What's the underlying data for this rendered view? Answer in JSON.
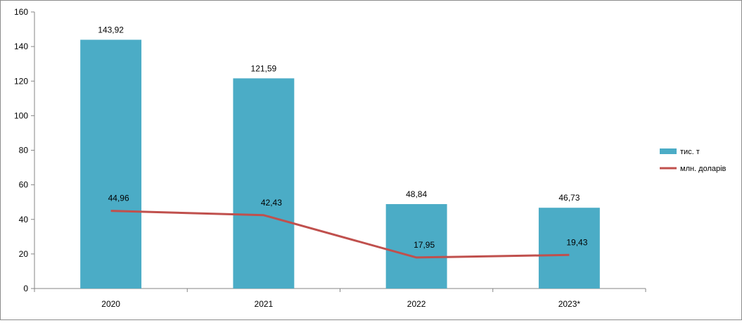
{
  "chart_data": {
    "type": "bar",
    "categories": [
      "2020",
      "2021",
      "2022",
      "2023*"
    ],
    "ylim": [
      0,
      160
    ],
    "yticks": [
      0,
      20,
      40,
      60,
      80,
      100,
      120,
      140,
      160
    ],
    "title": "",
    "xlabel": "",
    "ylabel": "",
    "grid": false,
    "legend_position": "right",
    "series": [
      {
        "name": "тис. т",
        "type": "bar",
        "color": "#4bacc6",
        "values": [
          143.92,
          121.59,
          48.84,
          46.73
        ],
        "labels": [
          "143,92",
          "121,59",
          "48,84",
          "46,73"
        ]
      },
      {
        "name": "млн. доларів",
        "type": "line",
        "color": "#c0504d",
        "values": [
          44.96,
          42.43,
          17.95,
          19.43
        ],
        "labels": [
          "44,96",
          "42,43",
          "17,95",
          "19,43"
        ]
      }
    ]
  }
}
